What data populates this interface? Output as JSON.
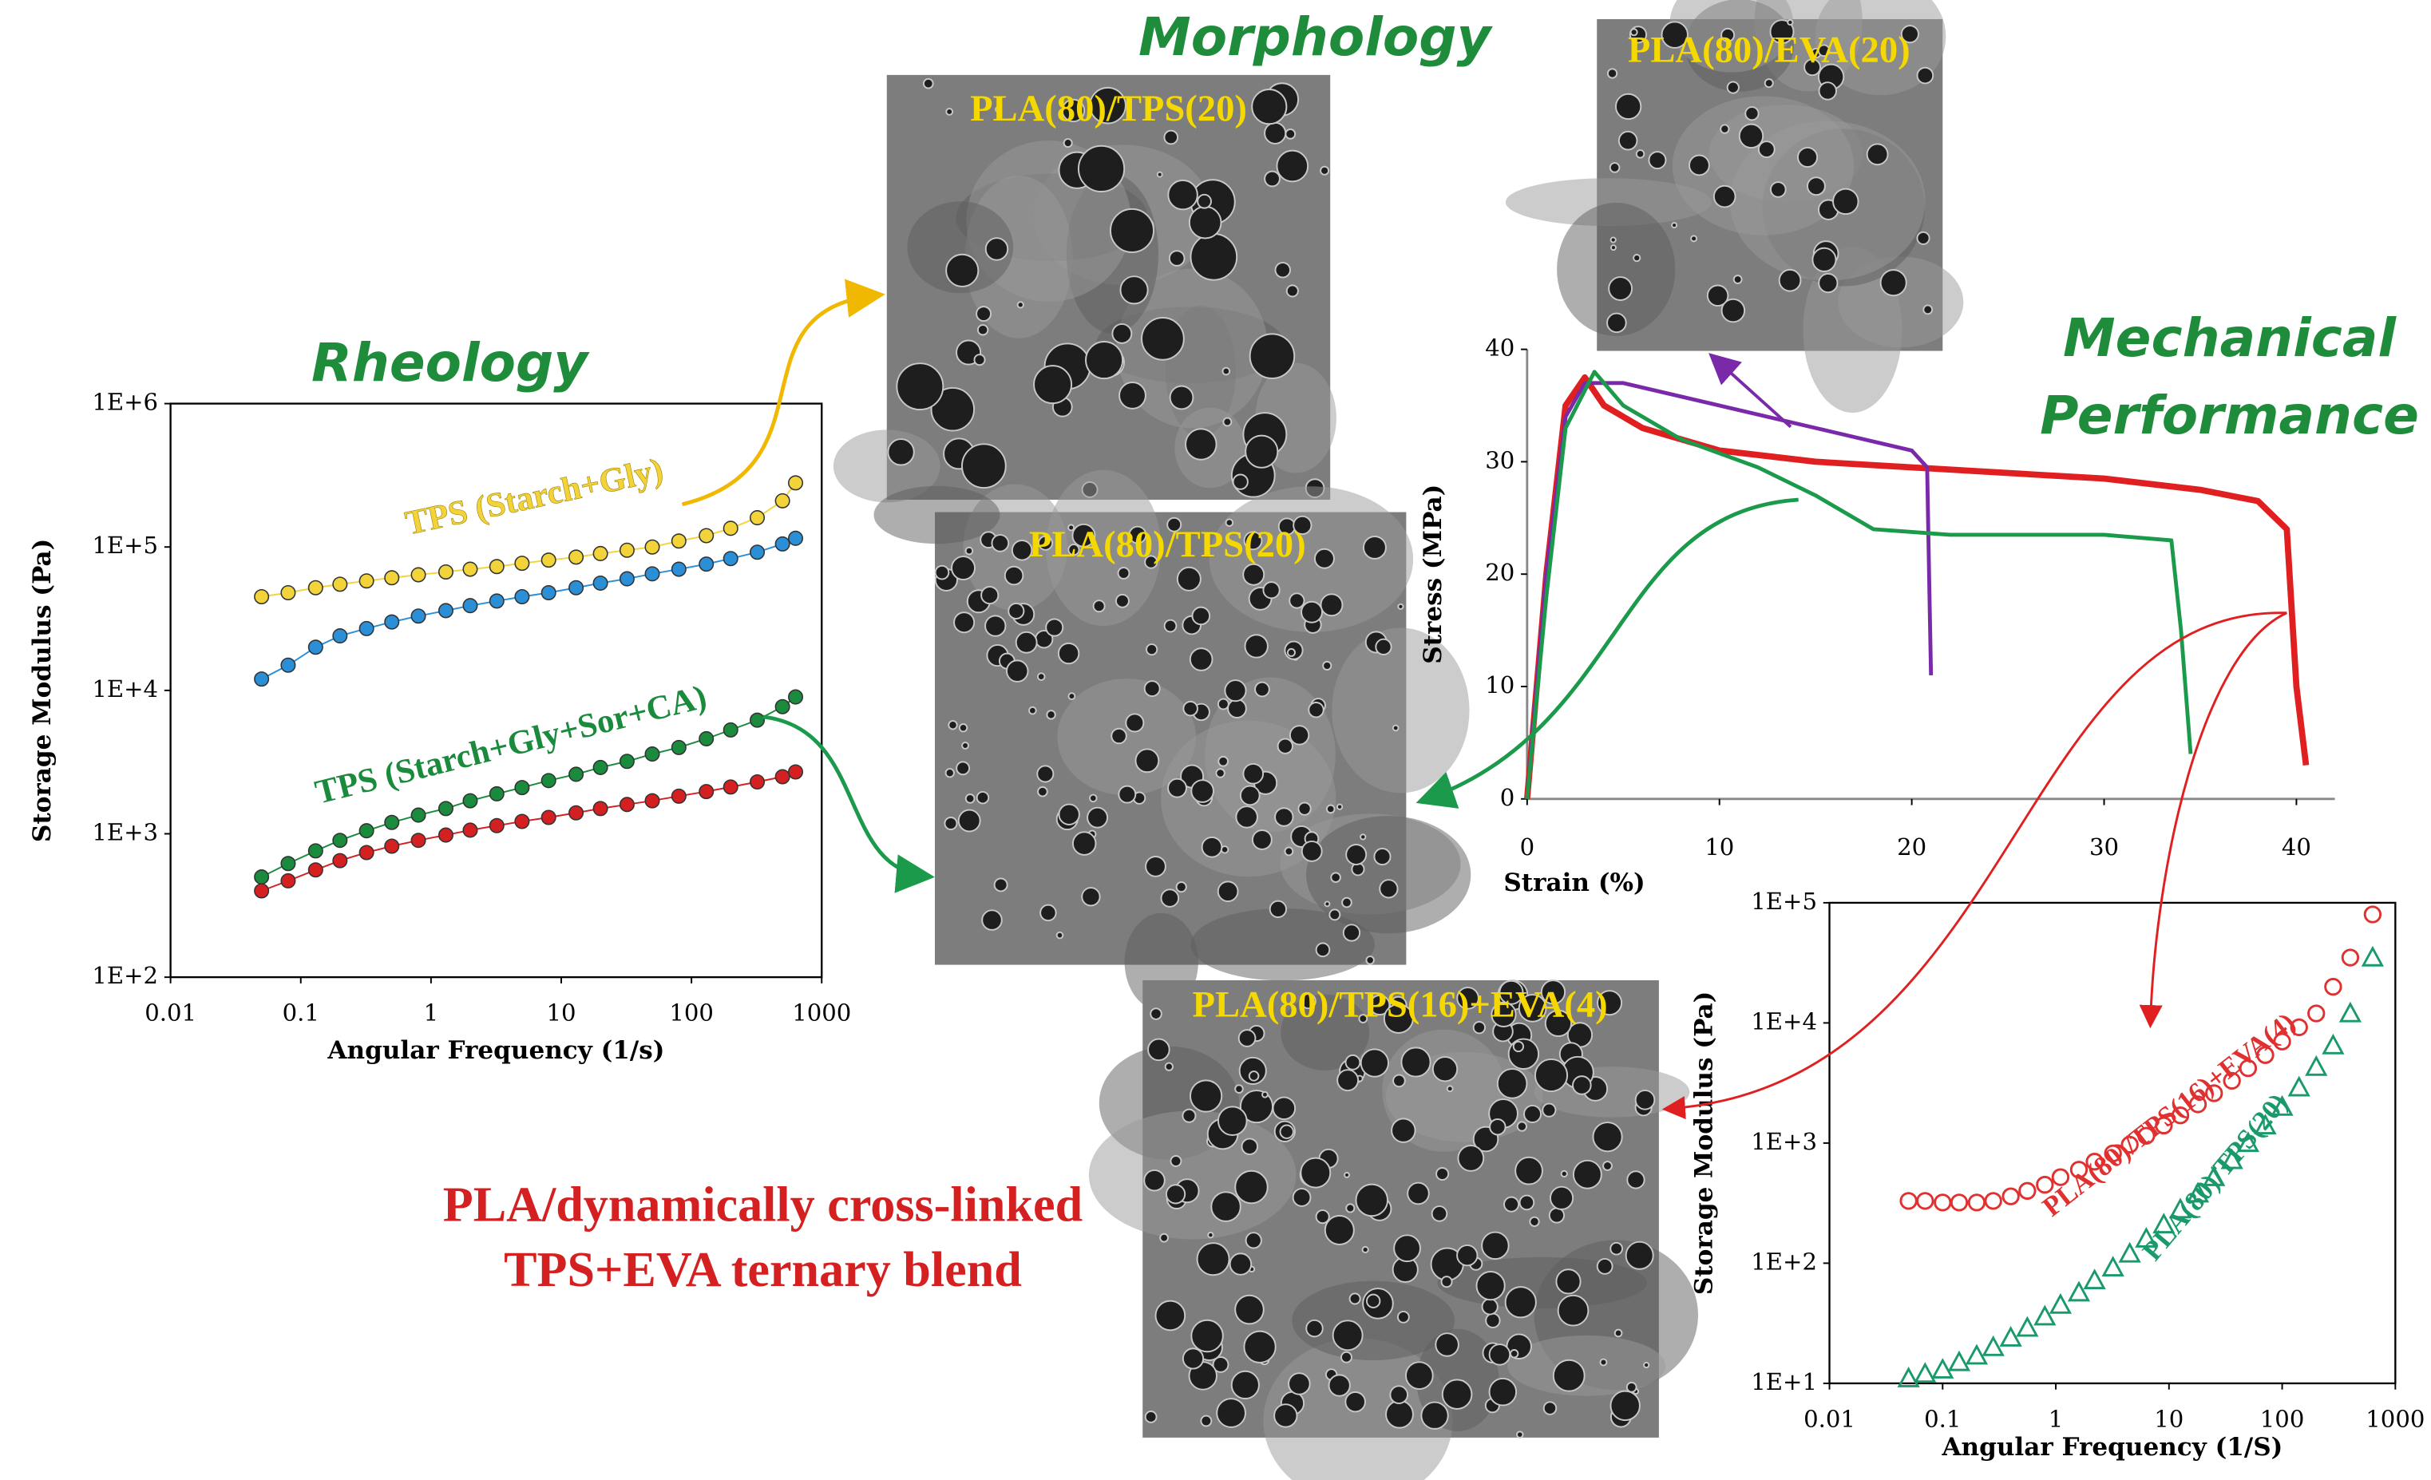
{
  "labels": {
    "morphology": "Morphology",
    "image_captions": [
      "PLA(80)/TPS(20)",
      "PLA(80)/TPS(20)",
      "PLA(80)/EVA(20)",
      "PLA(80)/TPS(16)+EVA(4)"
    ],
    "blend_text": [
      "PLA/dynamically cross-linked",
      "TPS+EVA ternary blend"
    ]
  },
  "chart_data": [
    {
      "type": "scatter",
      "title": "Rheology",
      "xscale": "log",
      "yscale": "log",
      "frame": true,
      "x_label": "Angular Frequency (1/s)",
      "y_label": "Storage Modulus (Pa)",
      "xlim": [
        0.01,
        1000
      ],
      "ylim": [
        100,
        1000000
      ],
      "xticks": [
        0.01,
        0.1,
        1,
        10,
        100,
        1000
      ],
      "yticks": [
        {
          "value": 100,
          "label": "1E+2"
        },
        {
          "value": 1000,
          "label": "1E+3"
        },
        {
          "value": 10000,
          "label": "1E+4"
        },
        {
          "value": 100000,
          "label": "1E+5"
        },
        {
          "value": 1000000,
          "label": "1E+6"
        }
      ],
      "x": [
        0.05,
        0.08,
        0.13,
        0.2,
        0.32,
        0.5,
        0.8,
        1.3,
        2,
        3.2,
        5,
        8,
        13,
        20,
        32,
        50,
        80,
        130,
        200,
        320,
        500,
        630
      ],
      "series": [
        {
          "name": "TPS (Starch+Gly)",
          "color": "#f2d43a",
          "marker": "circle",
          "filled": true,
          "values": [
            45000,
            48000,
            52000,
            55000,
            58000,
            61000,
            64000,
            67000,
            70000,
            73000,
            77000,
            81000,
            85000,
            90000,
            95000,
            100000,
            110000,
            120000,
            135000,
            160000,
            210000,
            280000
          ]
        },
        {
          "color": "#2a8fd6",
          "marker": "circle",
          "filled": true,
          "values": [
            12000,
            15000,
            20000,
            24000,
            27000,
            30000,
            33000,
            36000,
            39000,
            42000,
            45000,
            48000,
            52000,
            56000,
            60000,
            65000,
            70000,
            76000,
            83000,
            92000,
            105000,
            115000
          ]
        },
        {
          "name": "TPS (Starch+Gly+Sor+CA)",
          "color": "#1a8a3c",
          "marker": "circle",
          "filled": true,
          "values": [
            500,
            620,
            760,
            900,
            1050,
            1200,
            1350,
            1500,
            1700,
            1900,
            2100,
            2350,
            2600,
            2900,
            3200,
            3600,
            4000,
            4600,
            5300,
            6200,
            7700,
            9000
          ]
        },
        {
          "color": "#d42020",
          "marker": "circle",
          "filled": true,
          "values": [
            400,
            470,
            560,
            650,
            740,
            820,
            900,
            980,
            1060,
            1140,
            1220,
            1300,
            1400,
            1500,
            1600,
            1700,
            1830,
            1970,
            2120,
            2300,
            2500,
            2700
          ]
        }
      ]
    },
    {
      "type": "line",
      "title": [
        "Mechanical",
        "Performance"
      ],
      "frame": false,
      "x_label": "Strain (%)",
      "y_label": "Stress (MPa)",
      "xlim": [
        0,
        42
      ],
      "ylim": [
        0,
        40
      ],
      "xticks": [
        0,
        10,
        20,
        30,
        40
      ],
      "yticks": [
        0,
        10,
        20,
        30,
        40
      ],
      "series": [
        {
          "color": "#e02020",
          "width": 4,
          "x": [
            0,
            1,
            2,
            3,
            4,
            6,
            10,
            15,
            20,
            25,
            30,
            35,
            38,
            39.5,
            40,
            40.5
          ],
          "values": [
            0,
            20,
            35,
            37.5,
            35,
            33,
            31,
            30,
            29.5,
            29,
            28.5,
            27.5,
            26.5,
            24,
            10,
            3
          ]
        },
        {
          "color": "#7a2aa8",
          "width": 2.5,
          "x": [
            0,
            1,
            2,
            3,
            5,
            10,
            15,
            20,
            20.8,
            20.9,
            21
          ],
          "values": [
            0,
            20,
            34,
            37,
            37,
            35,
            33,
            31,
            29.5,
            20,
            11
          ]
        },
        {
          "color": "#1a9a4a",
          "width": 2.5,
          "x": [
            0,
            1,
            2,
            3.5,
            5,
            8,
            12,
            15,
            18,
            22,
            26,
            30,
            33.5,
            34,
            34.5
          ],
          "values": [
            0,
            18,
            33,
            38,
            35,
            32,
            29.5,
            27,
            24,
            23.5,
            23.5,
            23.5,
            23,
            15,
            4
          ]
        }
      ]
    },
    {
      "type": "scatter",
      "xscale": "log",
      "yscale": "log",
      "frame": true,
      "x_label": "Angular Frequency (1/S)",
      "y_label": "Storage Modulus (Pa)",
      "xlim": [
        0.01,
        1000
      ],
      "ylim": [
        10,
        100000
      ],
      "xticks": [
        0.01,
        0.1,
        1,
        10,
        100,
        1000
      ],
      "yticks": [
        {
          "value": 10,
          "label": "1E+1"
        },
        {
          "value": 100,
          "label": "1E+2"
        },
        {
          "value": 1000,
          "label": "1E+3"
        },
        {
          "value": 10000,
          "label": "1E+4"
        },
        {
          "value": 100000,
          "label": "1E+5"
        }
      ],
      "x": [
        0.05,
        0.07,
        0.1,
        0.14,
        0.2,
        0.28,
        0.4,
        0.56,
        0.8,
        1.1,
        1.6,
        2.2,
        3.2,
        4.5,
        6.3,
        9,
        12.6,
        18,
        25,
        36,
        50,
        71,
        100,
        141,
        200,
        282,
        400,
        630
      ],
      "series": [
        {
          "name": "PLA(80)/TPS(16)+EVA(4)",
          "color": "#e03030",
          "marker": "circle",
          "filled": false,
          "values": [
            330,
            330,
            320,
            320,
            320,
            330,
            360,
            400,
            450,
            520,
            600,
            700,
            820,
            970,
            1150,
            1400,
            1700,
            2100,
            2600,
            3300,
            4200,
            5400,
            7000,
            9200,
            12000,
            20000,
            35000,
            80000
          ]
        },
        {
          "name": "PLA(80)/TPS(20)",
          "color": "#1a9a6a",
          "marker": "triangle",
          "filled": false,
          "values": [
            11,
            12,
            13,
            15,
            17,
            20,
            24,
            29,
            36,
            45,
            57,
            72,
            92,
            120,
            160,
            210,
            280,
            380,
            520,
            720,
            1000,
            1400,
            2000,
            2900,
            4300,
            6500,
            12000,
            35000
          ]
        }
      ]
    }
  ]
}
